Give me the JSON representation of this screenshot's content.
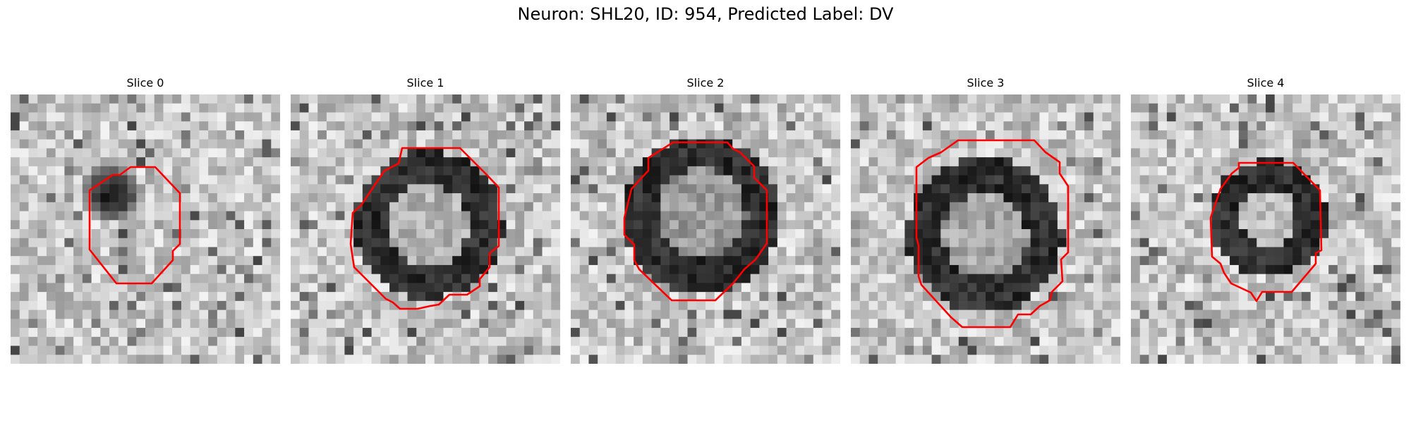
{
  "figure": {
    "title": "Neuron: SHL20, ID: 954, Predicted Label: DV",
    "contour_color": "#ff0000",
    "colormap": "gray"
  },
  "slices": [
    {
      "title": "Slice 0"
    },
    {
      "title": "Slice 1"
    },
    {
      "title": "Slice 2"
    },
    {
      "title": "Slice 3"
    },
    {
      "title": "Slice 4"
    }
  ]
}
